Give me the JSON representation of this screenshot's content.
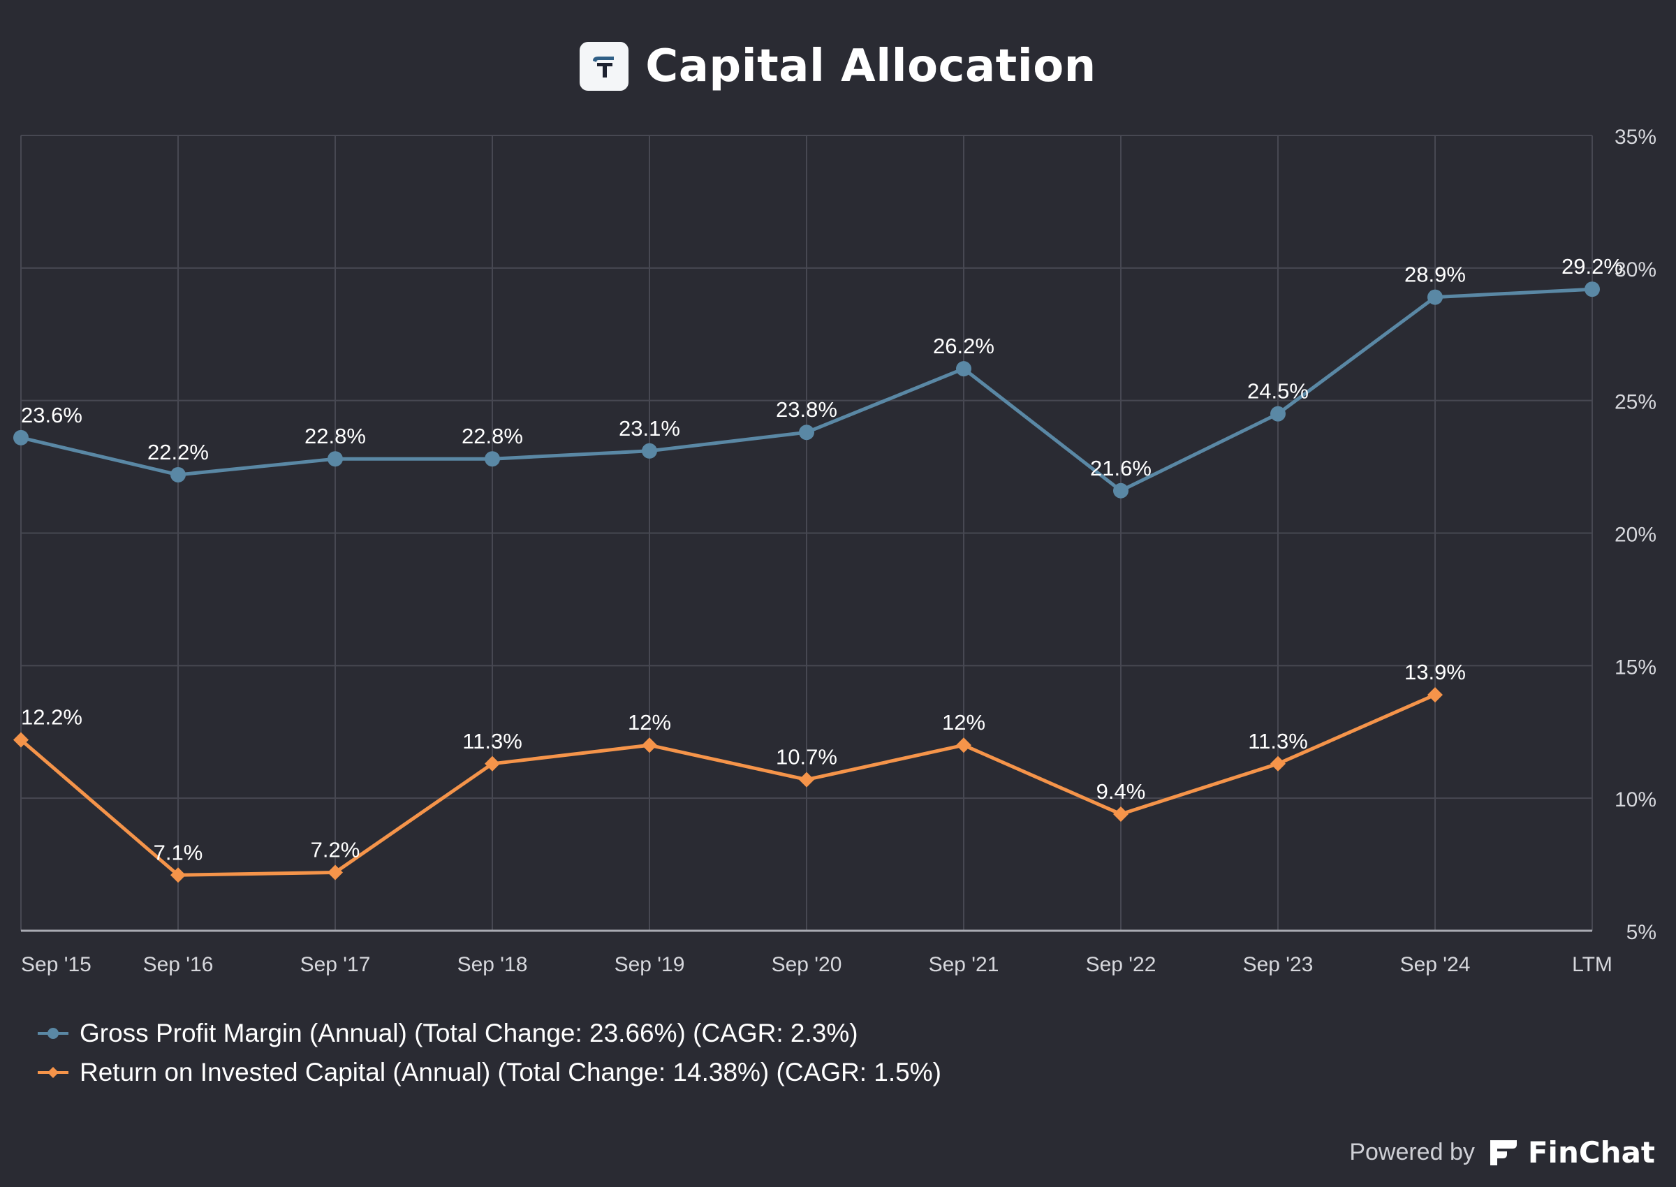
{
  "header": {
    "title": "Capital Allocation",
    "logo_icon": "tikr-logo-icon"
  },
  "chart_data": {
    "type": "line",
    "title": "Capital Allocation",
    "categories": [
      "Sep '15",
      "Sep '16",
      "Sep '17",
      "Sep '18",
      "Sep '19",
      "Sep '20",
      "Sep '21",
      "Sep '22",
      "Sep '23",
      "Sep '24",
      "LTM"
    ],
    "y_ticks": [
      "5%",
      "10%",
      "15%",
      "20%",
      "25%",
      "30%",
      "35%"
    ],
    "ylim": [
      5,
      35
    ],
    "y_axis_side": "right",
    "grid": true,
    "legend_position": "bottom-left",
    "series": [
      {
        "name": "Gross Profit Margin (Annual) (Total Change: 23.66%) (CAGR: 2.3%)",
        "color": "#5a88a5",
        "marker": "circle",
        "values": [
          23.6,
          22.2,
          22.8,
          22.8,
          23.1,
          23.8,
          26.2,
          21.6,
          24.5,
          28.9,
          29.2
        ],
        "labels": [
          "23.6%",
          "22.2%",
          "22.8%",
          "22.8%",
          "23.1%",
          "23.8%",
          "26.2%",
          "21.6%",
          "24.5%",
          "28.9%",
          "29.2%"
        ]
      },
      {
        "name": "Return on Invested Capital (Annual) (Total Change: 14.38%) (CAGR: 1.5%)",
        "color": "#f5944a",
        "marker": "diamond",
        "values": [
          12.2,
          7.1,
          7.2,
          11.3,
          12.0,
          10.7,
          12.0,
          9.4,
          11.3,
          13.9,
          null
        ],
        "labels": [
          "12.2%",
          "7.1%",
          "7.2%",
          "11.3%",
          "12%",
          "10.7%",
          "12%",
          "9.4%",
          "11.3%",
          "13.9%",
          null
        ]
      }
    ]
  },
  "footer": {
    "powered_by": "Powered by",
    "brand": "FinChat",
    "brand_icon": "finchat-logo-icon"
  }
}
